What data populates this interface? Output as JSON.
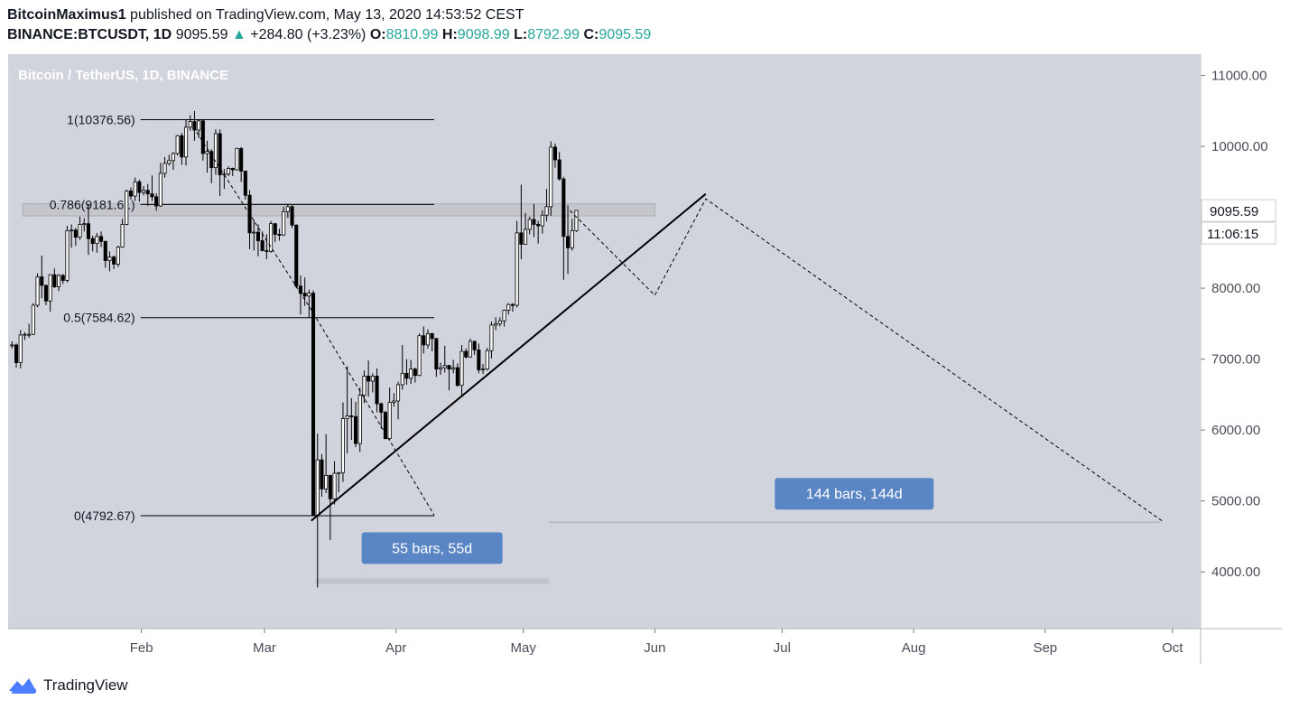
{
  "header": {
    "author": "BitcoinMaximus1",
    "published": "published on TradingView.com, May 13, 2020 14:53:52 CEST",
    "symbol": "BINANCE:BTCUSDT, 1D",
    "last": "9095.59",
    "change": "+284.80 (+3.23%)",
    "o_label": "O:",
    "o": "8810.99",
    "h_label": "H:",
    "h": "9098.99",
    "l_label": "L:",
    "l": "8792.99",
    "c_label": "C:",
    "c": "9095.59",
    "up_color": "#26a69a"
  },
  "footer": {
    "brand": "TradingView"
  },
  "chart_data": {
    "type": "candlestick",
    "title": "Bitcoin / TetherUS, 1D, BINANCE",
    "background": "#d1d4dc",
    "y_ticks": [
      4000,
      5000,
      6000,
      7000,
      8000,
      9000,
      10000,
      11000
    ],
    "y_tick_labels": [
      "4000.00",
      "5000.00",
      "6000.00",
      "7000.00",
      "8000.00",
      "9000.00",
      "10000.00",
      "11000.00"
    ],
    "ylim": [
      3200,
      11300
    ],
    "x_tick_labels": [
      "Feb",
      "Mar",
      "Apr",
      "May",
      "Jun",
      "Jul",
      "Aug",
      "Sep",
      "Oct"
    ],
    "x_tick_dates": [
      "2020-02-01",
      "2020-03-01",
      "2020-04-01",
      "2020-05-01",
      "2020-06-01",
      "2020-07-01",
      "2020-08-01",
      "2020-09-01",
      "2020-10-01"
    ],
    "xlim": [
      "2020-01-01",
      "2020-10-07"
    ],
    "last_price_label": "9095.59",
    "countdown": "11:06:15",
    "fib_levels": [
      {
        "label": "1(10376.56)",
        "value": 10376.56
      },
      {
        "label": "0.786(9181.61)",
        "value": 9181.61
      },
      {
        "label": "0.5(7584.62)",
        "value": 7584.62
      },
      {
        "label": "0(4792.67)",
        "value": 4792.67
      }
    ],
    "fib_range": [
      "2020-01-02",
      "2020-04-10"
    ],
    "resistance_zone": {
      "from": "2020-01-04",
      "to": "2020-06-01",
      "low": 9020,
      "high": 9190
    },
    "trend_line": [
      {
        "date": "2020-03-12",
        "value": 4720
      },
      {
        "date": "2020-06-13",
        "value": 9330
      }
    ],
    "projection_path_1": [
      {
        "date": "2020-02-14",
        "value": 10200
      },
      {
        "date": "2020-03-12",
        "value": 7700
      },
      {
        "date": "2020-04-10",
        "value": 4800
      }
    ],
    "projection_path_2": [
      {
        "date": "2020-05-12",
        "value": 9095
      },
      {
        "date": "2020-06-01",
        "value": 7900
      },
      {
        "date": "2020-06-13",
        "value": 9260
      },
      {
        "date": "2020-09-29",
        "value": 4700
      }
    ],
    "measurements": [
      {
        "label": "55 bars, 55d",
        "from": "2020-03-13",
        "to": "2020-05-07",
        "value": 3870
      },
      {
        "label": "144 bars, 144d",
        "from": "2020-05-07",
        "to": "2020-09-28",
        "value": 4700
      }
    ],
    "candles": [
      {
        "d": "2020-01-01",
        "o": 7200,
        "h": 7250,
        "l": 7150,
        "c": 7200
      },
      {
        "d": "2020-01-02",
        "o": 7200,
        "h": 7220,
        "l": 6880,
        "c": 6950
      },
      {
        "d": "2020-01-03",
        "o": 6950,
        "h": 7410,
        "l": 6870,
        "c": 7340
      },
      {
        "d": "2020-01-04",
        "o": 7340,
        "h": 7380,
        "l": 7270,
        "c": 7350
      },
      {
        "d": "2020-01-05",
        "o": 7350,
        "h": 7500,
        "l": 7300,
        "c": 7350
      },
      {
        "d": "2020-01-06",
        "o": 7350,
        "h": 7790,
        "l": 7340,
        "c": 7760
      },
      {
        "d": "2020-01-07",
        "o": 7760,
        "h": 8210,
        "l": 7730,
        "c": 8160
      },
      {
        "d": "2020-01-08",
        "o": 8160,
        "h": 8460,
        "l": 7860,
        "c": 8040
      },
      {
        "d": "2020-01-09",
        "o": 8040,
        "h": 8050,
        "l": 7760,
        "c": 7820
      },
      {
        "d": "2020-01-10",
        "o": 7820,
        "h": 8200,
        "l": 7670,
        "c": 8190
      },
      {
        "d": "2020-01-11",
        "o": 8190,
        "h": 8280,
        "l": 8000,
        "c": 8020
      },
      {
        "d": "2020-01-12",
        "o": 8020,
        "h": 8200,
        "l": 7960,
        "c": 8180
      },
      {
        "d": "2020-01-13",
        "o": 8180,
        "h": 8200,
        "l": 8060,
        "c": 8110
      },
      {
        "d": "2020-01-14",
        "o": 8110,
        "h": 8880,
        "l": 8080,
        "c": 8810
      },
      {
        "d": "2020-01-15",
        "o": 8810,
        "h": 8900,
        "l": 8570,
        "c": 8820
      },
      {
        "d": "2020-01-16",
        "o": 8820,
        "h": 8850,
        "l": 8600,
        "c": 8720
      },
      {
        "d": "2020-01-17",
        "o": 8720,
        "h": 9010,
        "l": 8680,
        "c": 8900
      },
      {
        "d": "2020-01-18",
        "o": 8900,
        "h": 8990,
        "l": 8800,
        "c": 8910
      },
      {
        "d": "2020-01-19",
        "o": 8910,
        "h": 9190,
        "l": 8470,
        "c": 8700
      },
      {
        "d": "2020-01-20",
        "o": 8700,
        "h": 8740,
        "l": 8520,
        "c": 8630
      },
      {
        "d": "2020-01-21",
        "o": 8630,
        "h": 8780,
        "l": 8500,
        "c": 8730
      },
      {
        "d": "2020-01-22",
        "o": 8730,
        "h": 8800,
        "l": 8580,
        "c": 8660
      },
      {
        "d": "2020-01-23",
        "o": 8660,
        "h": 8670,
        "l": 8290,
        "c": 8390
      },
      {
        "d": "2020-01-24",
        "o": 8390,
        "h": 8520,
        "l": 8240,
        "c": 8440
      },
      {
        "d": "2020-01-25",
        "o": 8440,
        "h": 8460,
        "l": 8270,
        "c": 8340
      },
      {
        "d": "2020-01-26",
        "o": 8340,
        "h": 8600,
        "l": 8300,
        "c": 8580
      },
      {
        "d": "2020-01-27",
        "o": 8580,
        "h": 8980,
        "l": 8570,
        "c": 8900
      },
      {
        "d": "2020-01-28",
        "o": 8900,
        "h": 9390,
        "l": 8890,
        "c": 9370
      },
      {
        "d": "2020-01-29",
        "o": 9370,
        "h": 9420,
        "l": 9250,
        "c": 9300
      },
      {
        "d": "2020-01-30",
        "o": 9300,
        "h": 9560,
        "l": 9230,
        "c": 9500
      },
      {
        "d": "2020-01-31",
        "o": 9500,
        "h": 9530,
        "l": 9220,
        "c": 9350
      },
      {
        "d": "2020-02-01",
        "o": 9350,
        "h": 9440,
        "l": 9310,
        "c": 9380
      },
      {
        "d": "2020-02-02",
        "o": 9380,
        "h": 9470,
        "l": 9160,
        "c": 9330
      },
      {
        "d": "2020-02-03",
        "o": 9330,
        "h": 9590,
        "l": 9230,
        "c": 9290
      },
      {
        "d": "2020-02-04",
        "o": 9290,
        "h": 9340,
        "l": 9090,
        "c": 9160
      },
      {
        "d": "2020-02-05",
        "o": 9160,
        "h": 9770,
        "l": 9150,
        "c": 9620
      },
      {
        "d": "2020-02-06",
        "o": 9620,
        "h": 9850,
        "l": 9560,
        "c": 9760
      },
      {
        "d": "2020-02-07",
        "o": 9760,
        "h": 9880,
        "l": 9730,
        "c": 9800
      },
      {
        "d": "2020-02-08",
        "o": 9800,
        "h": 9920,
        "l": 9670,
        "c": 9900
      },
      {
        "d": "2020-02-09",
        "o": 9900,
        "h": 10160,
        "l": 9870,
        "c": 10150
      },
      {
        "d": "2020-02-10",
        "o": 10150,
        "h": 10190,
        "l": 9740,
        "c": 9850
      },
      {
        "d": "2020-02-11",
        "o": 9850,
        "h": 10370,
        "l": 9730,
        "c": 10270
      },
      {
        "d": "2020-02-12",
        "o": 10270,
        "h": 10440,
        "l": 10220,
        "c": 10350
      },
      {
        "d": "2020-02-13",
        "o": 10350,
        "h": 10500,
        "l": 10080,
        "c": 10230
      },
      {
        "d": "2020-02-14",
        "o": 10230,
        "h": 10380,
        "l": 10120,
        "c": 10360
      },
      {
        "d": "2020-02-15",
        "o": 10360,
        "h": 10380,
        "l": 9800,
        "c": 9900
      },
      {
        "d": "2020-02-16",
        "o": 9900,
        "h": 10080,
        "l": 9630,
        "c": 9930
      },
      {
        "d": "2020-02-17",
        "o": 9930,
        "h": 9960,
        "l": 9480,
        "c": 9700
      },
      {
        "d": "2020-02-18",
        "o": 9700,
        "h": 10240,
        "l": 9600,
        "c": 10180
      },
      {
        "d": "2020-02-19",
        "o": 10180,
        "h": 10240,
        "l": 9300,
        "c": 9600
      },
      {
        "d": "2020-02-20",
        "o": 9600,
        "h": 9680,
        "l": 9400,
        "c": 9610
      },
      {
        "d": "2020-02-21",
        "o": 9610,
        "h": 9720,
        "l": 9580,
        "c": 9690
      },
      {
        "d": "2020-02-22",
        "o": 9690,
        "h": 9700,
        "l": 9580,
        "c": 9670
      },
      {
        "d": "2020-02-23",
        "o": 9670,
        "h": 9980,
        "l": 9660,
        "c": 9970
      },
      {
        "d": "2020-02-24",
        "o": 9970,
        "h": 9990,
        "l": 9500,
        "c": 9650
      },
      {
        "d": "2020-02-25",
        "o": 9650,
        "h": 9660,
        "l": 9250,
        "c": 9310
      },
      {
        "d": "2020-02-26",
        "o": 9310,
        "h": 9380,
        "l": 8550,
        "c": 8780
      },
      {
        "d": "2020-02-27",
        "o": 8780,
        "h": 8970,
        "l": 8530,
        "c": 8790
      },
      {
        "d": "2020-02-28",
        "o": 8790,
        "h": 8900,
        "l": 8450,
        "c": 8670
      },
      {
        "d": "2020-02-29",
        "o": 8670,
        "h": 8800,
        "l": 8520,
        "c": 8530
      },
      {
        "d": "2020-03-01",
        "o": 8530,
        "h": 8760,
        "l": 8410,
        "c": 8520
      },
      {
        "d": "2020-03-02",
        "o": 8520,
        "h": 8950,
        "l": 8500,
        "c": 8910
      },
      {
        "d": "2020-03-03",
        "o": 8910,
        "h": 8920,
        "l": 8650,
        "c": 8760
      },
      {
        "d": "2020-03-04",
        "o": 8760,
        "h": 8840,
        "l": 8670,
        "c": 8750
      },
      {
        "d": "2020-03-05",
        "o": 8750,
        "h": 9150,
        "l": 8740,
        "c": 9080
      },
      {
        "d": "2020-03-06",
        "o": 9080,
        "h": 9190,
        "l": 8990,
        "c": 9150
      },
      {
        "d": "2020-03-07",
        "o": 9150,
        "h": 9170,
        "l": 8850,
        "c": 8890
      },
      {
        "d": "2020-03-08",
        "o": 8890,
        "h": 8900,
        "l": 8000,
        "c": 8030
      },
      {
        "d": "2020-03-09",
        "o": 8030,
        "h": 8180,
        "l": 7630,
        "c": 7930
      },
      {
        "d": "2020-03-10",
        "o": 7930,
        "h": 8150,
        "l": 7750,
        "c": 7890
      },
      {
        "d": "2020-03-11",
        "o": 7890,
        "h": 7980,
        "l": 7590,
        "c": 7930
      },
      {
        "d": "2020-03-12",
        "o": 7930,
        "h": 7970,
        "l": 4790,
        "c": 4800
      },
      {
        "d": "2020-03-13",
        "o": 4800,
        "h": 5950,
        "l": 3780,
        "c": 5580
      },
      {
        "d": "2020-03-14",
        "o": 5580,
        "h": 5660,
        "l": 5060,
        "c": 5170
      },
      {
        "d": "2020-03-15",
        "o": 5170,
        "h": 5940,
        "l": 5110,
        "c": 5360
      },
      {
        "d": "2020-03-16",
        "o": 5360,
        "h": 5370,
        "l": 4450,
        "c": 5030
      },
      {
        "d": "2020-03-17",
        "o": 5030,
        "h": 5560,
        "l": 4950,
        "c": 5390
      },
      {
        "d": "2020-03-18",
        "o": 5390,
        "h": 5400,
        "l": 5120,
        "c": 5400
      },
      {
        "d": "2020-03-19",
        "o": 5400,
        "h": 6390,
        "l": 5270,
        "c": 6160
      },
      {
        "d": "2020-03-20",
        "o": 6160,
        "h": 6900,
        "l": 5670,
        "c": 6200
      },
      {
        "d": "2020-03-21",
        "o": 6200,
        "h": 6450,
        "l": 5860,
        "c": 6190
      },
      {
        "d": "2020-03-22",
        "o": 6190,
        "h": 6400,
        "l": 5760,
        "c": 5810
      },
      {
        "d": "2020-03-23",
        "o": 5810,
        "h": 6600,
        "l": 5690,
        "c": 6490
      },
      {
        "d": "2020-03-24",
        "o": 6490,
        "h": 6840,
        "l": 6380,
        "c": 6760
      },
      {
        "d": "2020-03-25",
        "o": 6760,
        "h": 6980,
        "l": 6470,
        "c": 6690
      },
      {
        "d": "2020-03-26",
        "o": 6690,
        "h": 6800,
        "l": 6530,
        "c": 6760
      },
      {
        "d": "2020-03-27",
        "o": 6760,
        "h": 6870,
        "l": 6250,
        "c": 6370
      },
      {
        "d": "2020-03-28",
        "o": 6370,
        "h": 6390,
        "l": 6020,
        "c": 6250
      },
      {
        "d": "2020-03-29",
        "o": 6250,
        "h": 6270,
        "l": 5870,
        "c": 5880
      },
      {
        "d": "2020-03-30",
        "o": 5880,
        "h": 6600,
        "l": 5860,
        "c": 6390
      },
      {
        "d": "2020-03-31",
        "o": 6390,
        "h": 6520,
        "l": 6330,
        "c": 6410
      },
      {
        "d": "2020-04-01",
        "o": 6410,
        "h": 6680,
        "l": 6150,
        "c": 6640
      },
      {
        "d": "2020-04-02",
        "o": 6640,
        "h": 7200,
        "l": 6570,
        "c": 6800
      },
      {
        "d": "2020-04-03",
        "o": 6800,
        "h": 7000,
        "l": 6640,
        "c": 6730
      },
      {
        "d": "2020-04-04",
        "o": 6730,
        "h": 6990,
        "l": 6650,
        "c": 6860
      },
      {
        "d": "2020-04-05",
        "o": 6860,
        "h": 6880,
        "l": 6670,
        "c": 6770
      },
      {
        "d": "2020-04-06",
        "o": 6770,
        "h": 7360,
        "l": 6760,
        "c": 7330
      },
      {
        "d": "2020-04-07",
        "o": 7330,
        "h": 7460,
        "l": 7080,
        "c": 7200
      },
      {
        "d": "2020-04-08",
        "o": 7200,
        "h": 7420,
        "l": 7150,
        "c": 7360
      },
      {
        "d": "2020-04-09",
        "o": 7360,
        "h": 7370,
        "l": 7110,
        "c": 7290
      },
      {
        "d": "2020-04-10",
        "o": 7290,
        "h": 7300,
        "l": 6750,
        "c": 6860
      },
      {
        "d": "2020-04-11",
        "o": 6860,
        "h": 6950,
        "l": 6780,
        "c": 6880
      },
      {
        "d": "2020-04-12",
        "o": 6880,
        "h": 7190,
        "l": 6810,
        "c": 6910
      },
      {
        "d": "2020-04-13",
        "o": 6910,
        "h": 6920,
        "l": 6560,
        "c": 6860
      },
      {
        "d": "2020-04-14",
        "o": 6860,
        "h": 6990,
        "l": 6800,
        "c": 6880
      },
      {
        "d": "2020-04-15",
        "o": 6880,
        "h": 6940,
        "l": 6610,
        "c": 6630
      },
      {
        "d": "2020-04-16",
        "o": 6630,
        "h": 7200,
        "l": 6470,
        "c": 7110
      },
      {
        "d": "2020-04-17",
        "o": 7110,
        "h": 7150,
        "l": 7010,
        "c": 7030
      },
      {
        "d": "2020-04-18",
        "o": 7030,
        "h": 7290,
        "l": 7020,
        "c": 7250
      },
      {
        "d": "2020-04-19",
        "o": 7250,
        "h": 7260,
        "l": 7060,
        "c": 7130
      },
      {
        "d": "2020-04-20",
        "o": 7130,
        "h": 7220,
        "l": 6800,
        "c": 6850
      },
      {
        "d": "2020-04-21",
        "o": 6850,
        "h": 6930,
        "l": 6790,
        "c": 6860
      },
      {
        "d": "2020-04-22",
        "o": 6860,
        "h": 7160,
        "l": 6840,
        "c": 7120
      },
      {
        "d": "2020-04-23",
        "o": 7120,
        "h": 7530,
        "l": 7010,
        "c": 7480
      },
      {
        "d": "2020-04-24",
        "o": 7480,
        "h": 7590,
        "l": 7410,
        "c": 7500
      },
      {
        "d": "2020-04-25",
        "o": 7500,
        "h": 7590,
        "l": 7460,
        "c": 7540
      },
      {
        "d": "2020-04-26",
        "o": 7540,
        "h": 7700,
        "l": 7460,
        "c": 7690
      },
      {
        "d": "2020-04-27",
        "o": 7690,
        "h": 7790,
        "l": 7630,
        "c": 7770
      },
      {
        "d": "2020-04-28",
        "o": 7770,
        "h": 7790,
        "l": 7670,
        "c": 7760
      },
      {
        "d": "2020-04-29",
        "o": 7760,
        "h": 8950,
        "l": 7730,
        "c": 8780
      },
      {
        "d": "2020-04-30",
        "o": 8780,
        "h": 9460,
        "l": 8410,
        "c": 8620
      },
      {
        "d": "2020-05-01",
        "o": 8620,
        "h": 9060,
        "l": 8620,
        "c": 8830
      },
      {
        "d": "2020-05-02",
        "o": 8830,
        "h": 9010,
        "l": 8760,
        "c": 8970
      },
      {
        "d": "2020-05-03",
        "o": 8970,
        "h": 9190,
        "l": 8720,
        "c": 8900
      },
      {
        "d": "2020-05-04",
        "o": 8900,
        "h": 8950,
        "l": 8630,
        "c": 8880
      },
      {
        "d": "2020-05-05",
        "o": 8880,
        "h": 9100,
        "l": 8770,
        "c": 9030
      },
      {
        "d": "2020-05-06",
        "o": 9030,
        "h": 9400,
        "l": 8940,
        "c": 9150
      },
      {
        "d": "2020-05-07",
        "o": 9150,
        "h": 10070,
        "l": 9020,
        "c": 9990
      },
      {
        "d": "2020-05-08",
        "o": 9990,
        "h": 10040,
        "l": 9700,
        "c": 9810
      },
      {
        "d": "2020-05-09",
        "o": 9810,
        "h": 9920,
        "l": 9520,
        "c": 9540
      },
      {
        "d": "2020-05-10",
        "o": 9540,
        "h": 9570,
        "l": 8120,
        "c": 8730
      },
      {
        "d": "2020-05-11",
        "o": 8730,
        "h": 9170,
        "l": 8200,
        "c": 8570
      },
      {
        "d": "2020-05-12",
        "o": 8570,
        "h": 8980,
        "l": 8530,
        "c": 8810
      },
      {
        "d": "2020-05-13",
        "o": 8810,
        "h": 9099,
        "l": 8793,
        "c": 9096
      }
    ]
  }
}
